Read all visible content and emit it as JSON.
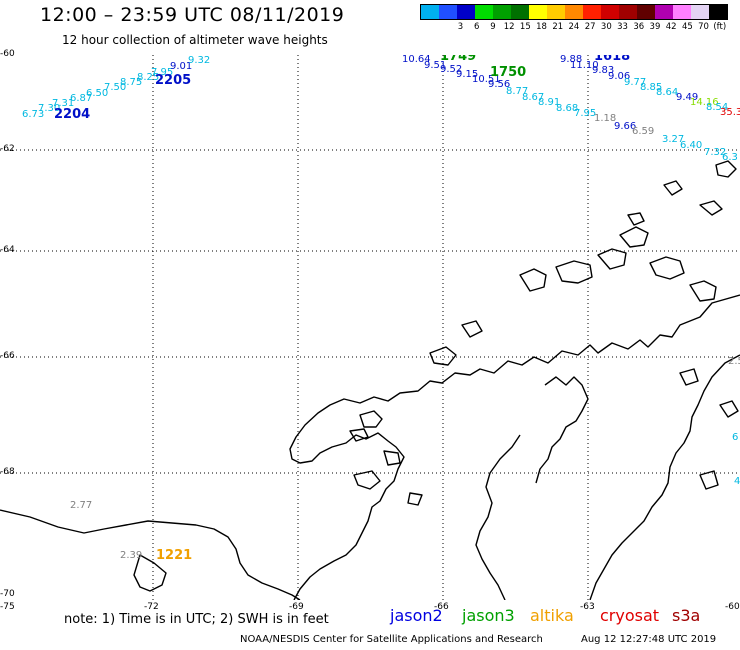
{
  "title": "12:00 – 23:59 UTC 08/11/2019",
  "subtitle": "12 hour collection of altimeter wave heights",
  "legend": {
    "colors": [
      "#707070",
      "#00e5ff",
      "#00b0f0",
      "#2050ff",
      "#0000c8",
      "#00dd00",
      "#00a000",
      "#007000",
      "#ffff00",
      "#ffcc00",
      "#ff8800",
      "#ff2000",
      "#d00000",
      "#a00000",
      "#600000",
      "#b000b0",
      "#ff80ff",
      "#e4d4f4",
      "#000000"
    ],
    "values": [
      "3",
      "6",
      "9",
      "12",
      "15",
      "18",
      "21",
      "24",
      "27",
      "30",
      "33",
      "36",
      "39",
      "42",
      "45",
      "70",
      "(ft)"
    ]
  },
  "axes": {
    "lat_labels": [
      "-60",
      "-62",
      "-64",
      "-66",
      "-68",
      "-70"
    ],
    "lon_labels": [
      "-75",
      "-72",
      "-69",
      "-66",
      "-63",
      "-60"
    ]
  },
  "color_key": {
    "cyan": "#00b8e0",
    "blue": "#0010c8",
    "green": "#009000",
    "gray": "#808080",
    "orange": "#f0a000",
    "red": "#e00000",
    "lightgreen": "#88dd00"
  },
  "wave_labels": [
    {
      "text": "6.73",
      "c": "cyan"
    },
    {
      "text": "7.30",
      "c": "cyan"
    },
    {
      "text": "7.31",
      "c": "cyan"
    },
    {
      "text": "6.87",
      "c": "cyan"
    },
    {
      "text": "6.50",
      "c": "cyan"
    },
    {
      "text": "7.50",
      "c": "cyan"
    },
    {
      "text": "8.75",
      "c": "cyan"
    },
    {
      "text": "8.25",
      "c": "cyan"
    },
    {
      "text": "7.95",
      "c": "cyan"
    },
    {
      "text": "9.01",
      "c": "blue"
    },
    {
      "text": "9.32",
      "c": "cyan"
    },
    {
      "text": "10.64",
      "c": "blue"
    },
    {
      "text": "9.51",
      "c": "blue"
    },
    {
      "text": "9.52",
      "c": "blue"
    },
    {
      "text": "9.15",
      "c": "blue"
    },
    {
      "text": "10.51",
      "c": "blue"
    },
    {
      "text": "9.56",
      "c": "blue"
    },
    {
      "text": "8.77",
      "c": "cyan"
    },
    {
      "text": "8.67",
      "c": "cyan"
    },
    {
      "text": "8.91",
      "c": "cyan"
    },
    {
      "text": "8.68",
      "c": "cyan"
    },
    {
      "text": "7.95",
      "c": "cyan"
    },
    {
      "text": "1.18",
      "c": "gray"
    },
    {
      "text": "9.88",
      "c": "blue"
    },
    {
      "text": "11.10",
      "c": "blue"
    },
    {
      "text": "9.83",
      "c": "blue"
    },
    {
      "text": "9.06",
      "c": "blue"
    },
    {
      "text": "9.77",
      "c": "cyan"
    },
    {
      "text": "8.85",
      "c": "cyan"
    },
    {
      "text": "8.64",
      "c": "cyan"
    },
    {
      "text": "9.49",
      "c": "blue"
    },
    {
      "text": "14.16",
      "c": "lightgreen"
    },
    {
      "text": "8.54",
      "c": "cyan"
    },
    {
      "text": "35.3",
      "c": "red"
    },
    {
      "text": "9.66",
      "c": "blue"
    },
    {
      "text": "6.59",
      "c": "gray"
    },
    {
      "text": "3.27",
      "c": "cyan"
    },
    {
      "text": "6.40",
      "c": "cyan"
    },
    {
      "text": "7.32",
      "c": "cyan"
    },
    {
      "text": "6.3",
      "c": "cyan"
    },
    {
      "text": "2.5",
      "c": "gray"
    },
    {
      "text": "6",
      "c": "cyan"
    },
    {
      "text": "4",
      "c": "cyan"
    },
    {
      "text": "2.77",
      "c": "gray"
    },
    {
      "text": "2.39",
      "c": "gray"
    }
  ],
  "time_labels": [
    {
      "text": "2204",
      "c": "blue"
    },
    {
      "text": "2205",
      "c": "blue"
    },
    {
      "text": "1749",
      "c": "green"
    },
    {
      "text": "1750",
      "c": "green"
    },
    {
      "text": "1618",
      "c": "blue"
    },
    {
      "text": "1221",
      "c": "orange"
    }
  ],
  "note": "note: 1) Time is in UTC; 2) SWH is in feet",
  "satellites": [
    {
      "name": "jason2",
      "color": "#0000e0"
    },
    {
      "name": "jason3",
      "color": "#00a000"
    },
    {
      "name": "altika",
      "color": "#f0a000"
    },
    {
      "name": "cryosat",
      "color": "#e00000"
    },
    {
      "name": "s3a",
      "color": "#a00000"
    }
  ],
  "footer": "NOAA/NESDIS Center for Satellite Applications and Research",
  "timestamp": "Aug 12 12:27:48 UTC 2019"
}
